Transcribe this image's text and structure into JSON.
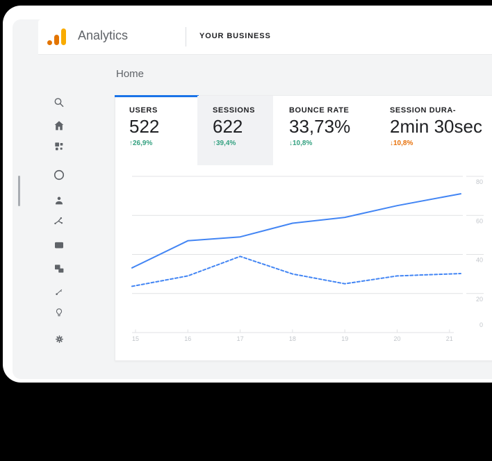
{
  "header": {
    "brand": "Analytics",
    "account": "YOUR BUSINESS"
  },
  "nav": {
    "page_title": "Home"
  },
  "sidebar": {
    "icons": [
      "search-icon",
      "home-icon",
      "customization-icon",
      "realtime-icon",
      "audience-icon",
      "acquisition-icon",
      "behavior-icon",
      "conversions-icon",
      "attribution-icon",
      "discover-icon",
      "admin-gear-icon"
    ]
  },
  "metrics": [
    {
      "label": "USERS",
      "value": "522",
      "delta": "↑26,9%",
      "delta_color": "#34a180",
      "highlighted": false
    },
    {
      "label": "SESSIONS",
      "value": "622",
      "delta": "↑39,4%",
      "delta_color": "#34a180",
      "highlighted": true
    },
    {
      "label": "BOUNCE RATE",
      "value": "33,73%",
      "delta": "↓10,8%",
      "delta_color": "#34a180",
      "highlighted": false
    },
    {
      "label": "SESSION DURA-",
      "value": "2min 30sec",
      "delta": "↓10,8%",
      "delta_color": "#e8710a",
      "highlighted": false
    }
  ],
  "chart_data": {
    "type": "line",
    "x": [
      15,
      16,
      17,
      18,
      19,
      20,
      21
    ],
    "series": [
      {
        "name": "current",
        "style": "solid",
        "values": [
          34,
          47,
          49,
          56,
          59,
          65,
          70
        ]
      },
      {
        "name": "previous",
        "style": "dashed",
        "values": [
          24,
          29,
          39,
          30,
          25,
          29,
          30
        ]
      }
    ],
    "ylim": [
      0,
      80
    ],
    "yticks": [
      0,
      20,
      40,
      60,
      80
    ],
    "grid": true,
    "legend": "none",
    "line_color": "#4285f4"
  },
  "theme": {
    "accent_blue": "#1a73e8",
    "line_blue": "#4285f4",
    "green": "#34a180",
    "orange": "#e8710a",
    "logo_orange_dark": "#e37400",
    "logo_orange_light": "#f9ab00"
  }
}
